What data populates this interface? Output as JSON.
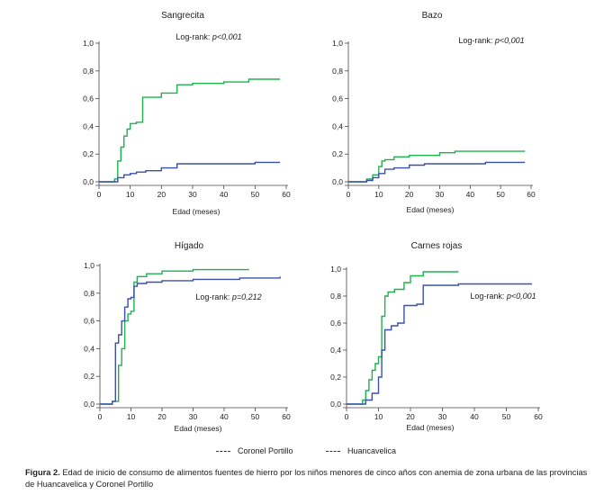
{
  "figure": {
    "caption_label": "Figura 2.",
    "caption_text": "Edad de inicio de consumo de alimentos fuentes de hierro por los niños menores de cinco años con anemia de zona urbana de las provincias de Huancavelica y Coronel Portillo"
  },
  "legend": {
    "coronel_portillo": "Coronel Portillo",
    "huancavelica": "Huancavelica"
  },
  "colors": {
    "green": "#1fb14f",
    "blue": "#3b50a8",
    "axis": "#444444"
  },
  "chart_data": [
    {
      "type": "line",
      "title": "Sangrecita",
      "annotation_prefix": "Log-rank: ",
      "annotation_p": "p<0,001",
      "xlabel": "Edad (meses)",
      "ylabel": "",
      "xlim": [
        0,
        60
      ],
      "ylim": [
        0,
        1.0
      ],
      "xticks": [
        "0",
        "10",
        "20",
        "30",
        "40",
        "50",
        "60"
      ],
      "yticks": [
        "0,0",
        "0,2",
        "0,4",
        "0,6",
        "0,8",
        "1,0"
      ],
      "series": [
        {
          "color": "green",
          "x": [
            0,
            5,
            6,
            7,
            8,
            9,
            10,
            12,
            14,
            20,
            25,
            30,
            40,
            48,
            58
          ],
          "y": [
            0,
            0.02,
            0.15,
            0.25,
            0.33,
            0.38,
            0.42,
            0.43,
            0.61,
            0.64,
            0.7,
            0.71,
            0.72,
            0.74,
            0.74
          ]
        },
        {
          "color": "blue",
          "x": [
            0,
            6,
            8,
            10,
            12,
            15,
            20,
            25,
            30,
            40,
            50,
            58
          ],
          "y": [
            0,
            0.03,
            0.05,
            0.06,
            0.07,
            0.08,
            0.1,
            0.13,
            0.13,
            0.13,
            0.14,
            0.14
          ]
        }
      ]
    },
    {
      "type": "line",
      "title": "Bazo",
      "annotation_prefix": "Log-rank: ",
      "annotation_p": "p<0,001",
      "xlabel": "Edad (meses)",
      "ylabel": "",
      "xlim": [
        0,
        60
      ],
      "ylim": [
        0,
        1.0
      ],
      "xticks": [
        "0",
        "10",
        "20",
        "30",
        "40",
        "50",
        "60"
      ],
      "yticks": [
        "0,0",
        "0,2",
        "0,4",
        "0,6",
        "0,8",
        "1,0"
      ],
      "series": [
        {
          "color": "green",
          "x": [
            0,
            6,
            8,
            10,
            11,
            12,
            15,
            20,
            30,
            35,
            45,
            58
          ],
          "y": [
            0,
            0.02,
            0.05,
            0.11,
            0.15,
            0.16,
            0.18,
            0.19,
            0.21,
            0.22,
            0.22,
            0.22
          ]
        },
        {
          "color": "blue",
          "x": [
            0,
            6,
            8,
            10,
            12,
            15,
            20,
            25,
            35,
            45,
            58
          ],
          "y": [
            0,
            0.01,
            0.03,
            0.06,
            0.09,
            0.1,
            0.12,
            0.13,
            0.13,
            0.14,
            0.14
          ]
        }
      ]
    },
    {
      "type": "line",
      "title": "Hígado",
      "annotation_prefix": "Log-rank: ",
      "annotation_p": "p=0,212",
      "xlabel": "Edad (meses)",
      "ylabel": "",
      "xlim": [
        0,
        60
      ],
      "ylim": [
        0,
        1.0
      ],
      "xticks": [
        "0",
        "10",
        "20",
        "30",
        "40",
        "50",
        "60"
      ],
      "yticks": [
        "0,0",
        "0,2",
        "0,4",
        "0,6",
        "0,8",
        "1,0"
      ],
      "series": [
        {
          "color": "green",
          "x": [
            0,
            4,
            6,
            7,
            8,
            9,
            10,
            11,
            12,
            15,
            20,
            30,
            48
          ],
          "y": [
            0,
            0.02,
            0.28,
            0.4,
            0.6,
            0.65,
            0.67,
            0.88,
            0.92,
            0.94,
            0.96,
            0.97,
            0.97
          ]
        },
        {
          "color": "blue",
          "x": [
            0,
            4,
            5,
            6,
            7,
            8,
            9,
            10,
            11,
            12,
            15,
            20,
            30,
            45,
            58
          ],
          "y": [
            0,
            0.02,
            0.44,
            0.5,
            0.6,
            0.7,
            0.76,
            0.77,
            0.85,
            0.87,
            0.88,
            0.89,
            0.9,
            0.91,
            0.92
          ]
        }
      ]
    },
    {
      "type": "line",
      "title": "Carnes rojas",
      "annotation_prefix": "Log-rank: ",
      "annotation_p": "p<0,001",
      "xlabel": "Edad (meses)",
      "ylabel": "",
      "xlim": [
        0,
        60
      ],
      "ylim": [
        0,
        1.0
      ],
      "xticks": [
        "0",
        "10",
        "20",
        "30",
        "40",
        "50",
        "60"
      ],
      "yticks": [
        "0,0",
        "0,2",
        "0,4",
        "0,6",
        "0,8",
        "1,0"
      ],
      "series": [
        {
          "color": "green",
          "x": [
            0,
            5,
            6,
            7,
            8,
            9,
            10,
            11,
            12,
            13,
            15,
            18,
            20,
            24,
            35
          ],
          "y": [
            0,
            0.03,
            0.1,
            0.18,
            0.25,
            0.3,
            0.35,
            0.65,
            0.8,
            0.83,
            0.85,
            0.9,
            0.95,
            0.98,
            0.98
          ]
        },
        {
          "color": "blue",
          "x": [
            0,
            6,
            8,
            10,
            11,
            12,
            14,
            16,
            18,
            22,
            24,
            35,
            58
          ],
          "y": [
            0,
            0.03,
            0.08,
            0.2,
            0.4,
            0.55,
            0.58,
            0.6,
            0.73,
            0.74,
            0.88,
            0.89,
            0.89
          ]
        }
      ]
    }
  ]
}
